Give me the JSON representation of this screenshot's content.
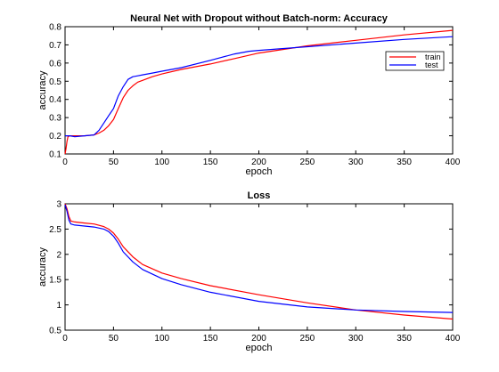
{
  "chart_data": [
    {
      "type": "line",
      "title": "Neural Net with Dropout without Batch-norm: Accuracy",
      "xlabel": "epoch",
      "ylabel": "accuracy",
      "xlim": [
        0,
        400
      ],
      "ylim": [
        0.1,
        0.8
      ],
      "xticks": [
        0,
        50,
        100,
        150,
        200,
        250,
        300,
        350,
        400
      ],
      "yticks": [
        0.1,
        0.2,
        0.3,
        0.4,
        0.5,
        0.6,
        0.7,
        0.8
      ],
      "grid": false,
      "legend": "top-right",
      "series": [
        {
          "name": "train",
          "color": "#ff0000",
          "x": [
            0,
            1,
            2,
            3,
            5,
            10,
            20,
            30,
            35,
            40,
            45,
            50,
            55,
            60,
            65,
            70,
            75,
            80,
            90,
            100,
            120,
            150,
            175,
            200,
            250,
            300,
            350,
            400
          ],
          "y": [
            0.1,
            0.13,
            0.17,
            0.195,
            0.2,
            0.2,
            0.2,
            0.205,
            0.215,
            0.23,
            0.255,
            0.29,
            0.35,
            0.41,
            0.45,
            0.475,
            0.495,
            0.505,
            0.525,
            0.54,
            0.565,
            0.595,
            0.625,
            0.655,
            0.695,
            0.725,
            0.755,
            0.78
          ]
        },
        {
          "name": "test",
          "color": "#0000ff",
          "x": [
            0,
            1,
            3,
            5,
            10,
            20,
            30,
            35,
            40,
            45,
            50,
            55,
            60,
            65,
            70,
            75,
            80,
            90,
            100,
            120,
            150,
            175,
            190,
            200,
            250,
            300,
            350,
            400
          ],
          "y": [
            0.2,
            0.2,
            0.2,
            0.2,
            0.195,
            0.2,
            0.205,
            0.23,
            0.27,
            0.31,
            0.35,
            0.42,
            0.47,
            0.51,
            0.525,
            0.53,
            0.535,
            0.545,
            0.555,
            0.575,
            0.615,
            0.65,
            0.665,
            0.67,
            0.69,
            0.71,
            0.73,
            0.745
          ]
        }
      ]
    },
    {
      "type": "line",
      "title": "Loss",
      "xlabel": "epoch",
      "ylabel": "accuracy",
      "xlim": [
        0,
        400
      ],
      "ylim": [
        0.5,
        3
      ],
      "xticks": [
        0,
        50,
        100,
        150,
        200,
        250,
        300,
        350,
        400
      ],
      "yticks": [
        0.5,
        1,
        1.5,
        2,
        2.5,
        3
      ],
      "grid": false,
      "series": [
        {
          "name": "train",
          "color": "#ff0000",
          "x": [
            0,
            2,
            4,
            6,
            10,
            20,
            30,
            40,
            45,
            50,
            55,
            60,
            70,
            80,
            100,
            120,
            150,
            200,
            250,
            300,
            350,
            400
          ],
          "y": [
            3.0,
            2.9,
            2.75,
            2.66,
            2.64,
            2.62,
            2.6,
            2.55,
            2.5,
            2.42,
            2.3,
            2.15,
            1.95,
            1.8,
            1.63,
            1.52,
            1.38,
            1.2,
            1.04,
            0.9,
            0.8,
            0.72
          ]
        },
        {
          "name": "test",
          "color": "#0000ff",
          "x": [
            0,
            2,
            4,
            6,
            10,
            20,
            30,
            40,
            45,
            50,
            55,
            60,
            70,
            80,
            100,
            120,
            150,
            200,
            250,
            300,
            350,
            400
          ],
          "y": [
            2.98,
            2.85,
            2.68,
            2.6,
            2.58,
            2.56,
            2.54,
            2.5,
            2.45,
            2.36,
            2.22,
            2.05,
            1.85,
            1.7,
            1.52,
            1.4,
            1.25,
            1.07,
            0.96,
            0.9,
            0.87,
            0.85
          ]
        }
      ]
    }
  ]
}
